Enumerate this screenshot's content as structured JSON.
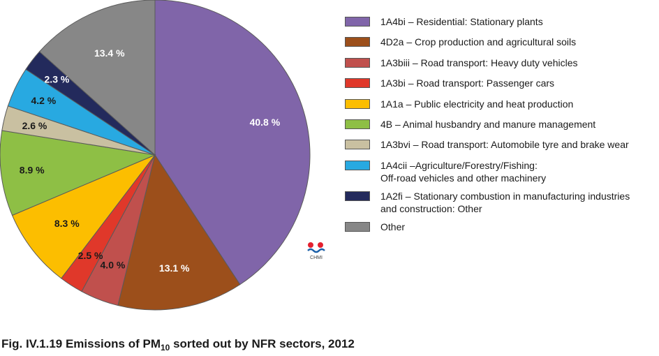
{
  "chart_data": {
    "type": "pie",
    "slices": [
      {
        "label": "1A4bi – Residential: Stationary plants",
        "value": 40.8,
        "value_label": "40.8 %",
        "color": "#8065a9"
      },
      {
        "label": "4D2a – Crop production and agricultural soils",
        "value": 13.1,
        "value_label": "13.1 %",
        "color": "#9c4f1b"
      },
      {
        "label": "1A3biii – Road transport: Heavy duty vehicles",
        "value": 4.0,
        "value_label": "4.0 %",
        "color": "#c0504d"
      },
      {
        "label": "1A3bi – Road transport: Passenger cars",
        "value": 2.5,
        "value_label": "2.5 %",
        "color": "#e0382a"
      },
      {
        "label": "1A1a – Public electricity and heat production",
        "value": 8.3,
        "value_label": "8.3 %",
        "color": "#fcbe00"
      },
      {
        "label": "4B – Animal husbandry and manure management",
        "value": 8.9,
        "value_label": "8.9 %",
        "color": "#8ebf45"
      },
      {
        "label": "1A3bvi – Road transport: Automobile tyre and brake wear",
        "value": 2.6,
        "value_label": "2.6 %",
        "color": "#c9c0a1"
      },
      {
        "label": "1A4cii –Agriculture/Forestry/Fishing:\nOff-road vehicles and other machinery",
        "value": 4.2,
        "value_label": "4.2 %",
        "color": "#28a9e1"
      },
      {
        "label": "1A2fi – Stationary combustion in manufacturing industries\nand construction: Other",
        "value": 2.3,
        "value_label": "2.3 %",
        "color": "#232a5c"
      },
      {
        "label": "Other",
        "value": 13.4,
        "value_label": "13.4 %",
        "color": "#878787"
      }
    ],
    "legend_position": "right"
  },
  "caption": {
    "prefix": "Fig. IV.1.19  Emissions of PM",
    "subscript": "10",
    "suffix": " sorted out by NFR sectors, 2012"
  },
  "logo": {
    "text": "CHMI"
  }
}
